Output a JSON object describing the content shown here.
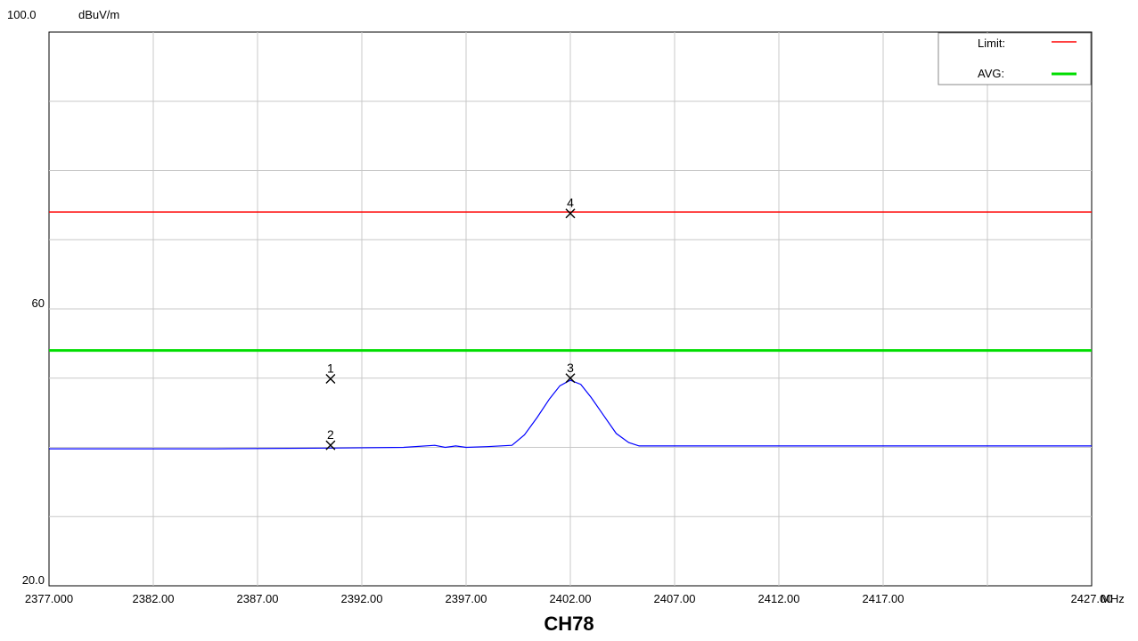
{
  "chart_data": {
    "type": "line",
    "y_top_label": "100.0",
    "y_unit": "dBuV/m",
    "x_unit": "MHz",
    "caption": "CH78",
    "xlim": [
      2377.0,
      2427.0
    ],
    "ylim": [
      20.0,
      100.0
    ],
    "x_tick_values": [
      2377,
      2382,
      2387,
      2392,
      2397,
      2402,
      2407,
      2412,
      2417,
      2427
    ],
    "x_tick_labels": [
      "2377.000",
      "2382.00",
      "2387.00",
      "2392.00",
      "2397.00",
      "2402.00",
      "2407.00",
      "2412.00",
      "2417.00",
      "2427.00"
    ],
    "x_grid": [
      2382,
      2387,
      2392,
      2397,
      2402,
      2407,
      2412,
      2417,
      2422
    ],
    "y_tick_labels": [
      {
        "value": 60,
        "label": "60"
      },
      {
        "value": 20,
        "label": "20.0"
      }
    ],
    "y_grid": [
      30,
      40,
      50,
      60,
      70,
      80,
      90
    ],
    "grid": true,
    "legend": {
      "position": "top-right",
      "entries": [
        {
          "label": "Limit:",
          "color": "#ff0000"
        },
        {
          "label": "AVG:",
          "color": "#00dd00"
        }
      ]
    },
    "series": [
      {
        "color": "#0000ff",
        "x": [
          2377,
          2385,
          2390.5,
          2394,
          2395.5,
          2396,
          2396.5,
          2397,
          2398,
          2399.2,
          2399.8,
          2400.4,
          2401.0,
          2401.5,
          2402.0,
          2402.5,
          2403.0,
          2403.6,
          2404.2,
          2404.8,
          2405.3,
          2406,
          2415,
          2427
        ],
        "y": [
          39.8,
          39.8,
          39.9,
          40.0,
          40.3,
          40.0,
          40.2,
          40.0,
          40.1,
          40.3,
          41.8,
          44.3,
          47.0,
          48.9,
          49.7,
          49.1,
          47.2,
          44.6,
          42.0,
          40.7,
          40.2,
          40.2,
          40.2,
          40.2
        ]
      }
    ],
    "limit_lines": [
      {
        "color": "#ff0000",
        "value": 74.0
      },
      {
        "color": "#00dd00",
        "value": 54.0
      }
    ],
    "markers": [
      {
        "label": "1",
        "x": 2390.5,
        "y": 49.9
      },
      {
        "label": "2",
        "x": 2390.5,
        "y": 40.3
      },
      {
        "label": "3",
        "x": 2402.0,
        "y": 50.0
      },
      {
        "label": "4",
        "x": 2402.0,
        "y": 73.8
      }
    ]
  }
}
